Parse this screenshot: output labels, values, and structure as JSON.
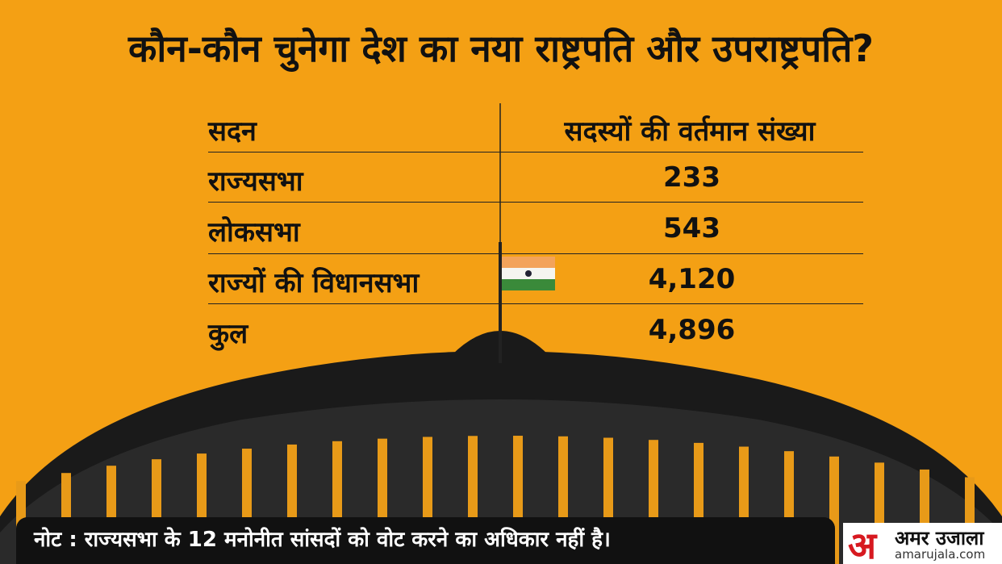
{
  "header": {
    "title": "कौन-कौन चुनेगा देश का नया राष्ट्रपति और उपराष्ट्रपति?"
  },
  "table": {
    "columns": [
      "सदन",
      "सदस्यों की वर्तमान संख्या"
    ],
    "rows": [
      [
        "राज्यसभा",
        "233"
      ],
      [
        "लोकसभा",
        "543"
      ],
      [
        "राज्यों की विधानसभा",
        "4,120"
      ],
      [
        "कुल",
        "4,896"
      ]
    ]
  },
  "footer": {
    "note": "नोट : राज्यसभा के 12 मनोनीत सांसदों को वोट करने का अधिकार नहीं है।",
    "logo": {
      "mark": "अ",
      "name": "अमर उजाला",
      "site": "amarujala.com"
    }
  }
}
